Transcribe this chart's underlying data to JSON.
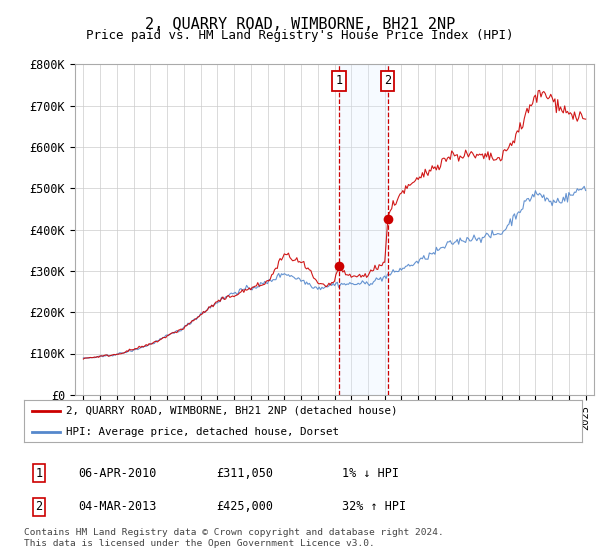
{
  "title": "2, QUARRY ROAD, WIMBORNE, BH21 2NP",
  "subtitle": "Price paid vs. HM Land Registry's House Price Index (HPI)",
  "ylim": [
    0,
    800000
  ],
  "yticks": [
    0,
    100000,
    200000,
    300000,
    400000,
    500000,
    600000,
    700000,
    800000
  ],
  "ytick_labels": [
    "£0",
    "£100K",
    "£200K",
    "£300K",
    "£400K",
    "£500K",
    "£600K",
    "£700K",
    "£800K"
  ],
  "hpi_color": "#5588cc",
  "price_color": "#cc0000",
  "marker1_x": 2010.26,
  "marker2_x": 2013.17,
  "marker1_price": 311050,
  "marker2_price": 425000,
  "shade_color": "#ddeeff",
  "legend_entries": [
    "2, QUARRY ROAD, WIMBORNE, BH21 2NP (detached house)",
    "HPI: Average price, detached house, Dorset"
  ],
  "legend_colors": [
    "#cc0000",
    "#5588cc"
  ],
  "table_rows": [
    [
      "1",
      "06-APR-2010",
      "£311,050",
      "1% ↓ HPI"
    ],
    [
      "2",
      "04-MAR-2013",
      "£425,000",
      "32% ↑ HPI"
    ]
  ],
  "footnote": "Contains HM Land Registry data © Crown copyright and database right 2024.\nThis data is licensed under the Open Government Licence v3.0.",
  "background_color": "#ffffff",
  "grid_color": "#cccccc",
  "xlim_left": 1994.5,
  "xlim_right": 2025.5
}
